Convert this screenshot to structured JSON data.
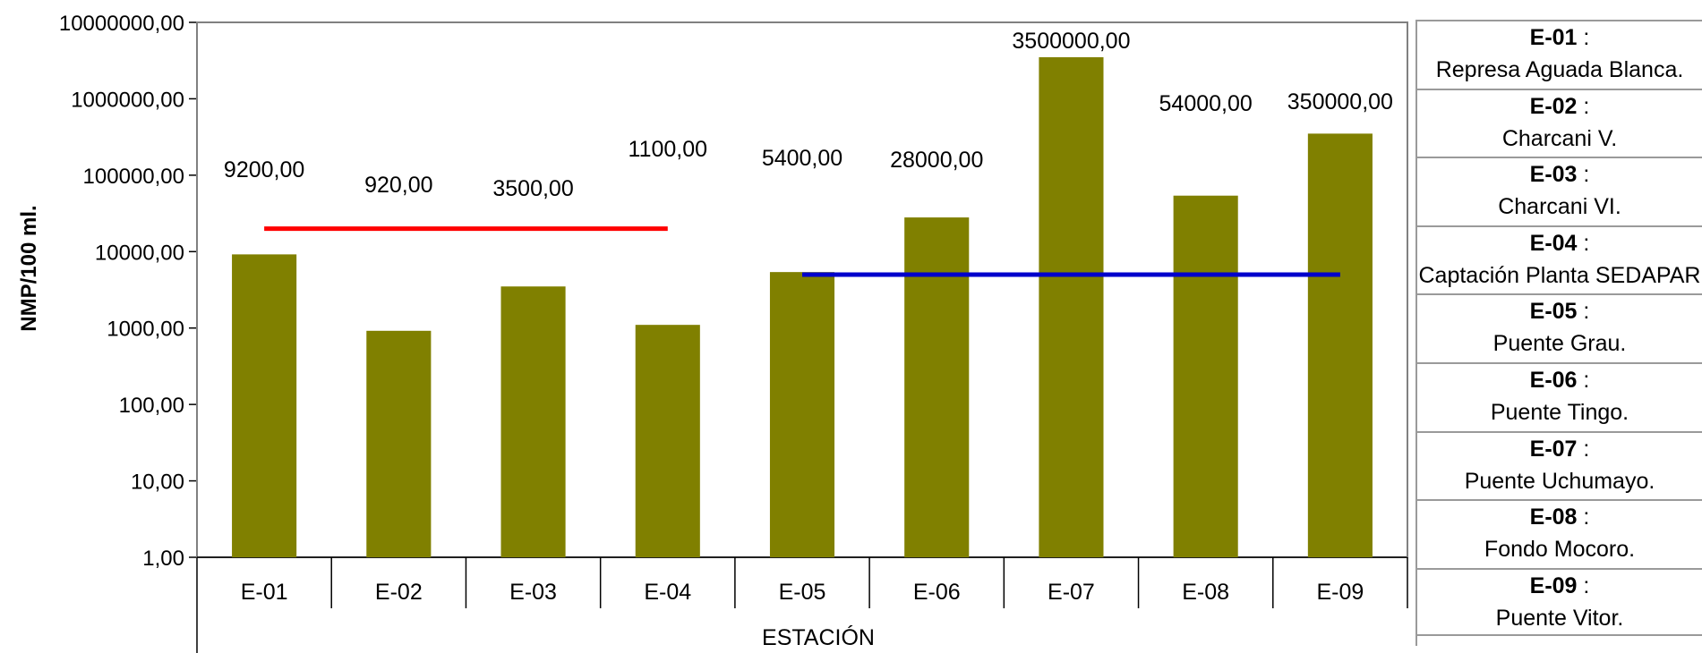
{
  "chart_data": {
    "type": "bar",
    "categories": [
      "E-01",
      "E-02",
      "E-03",
      "E-04",
      "E-05",
      "E-06",
      "E-07",
      "E-08",
      "E-09"
    ],
    "values": [
      9200,
      920,
      3500,
      1100,
      5400,
      28000,
      3500000,
      54000,
      350000
    ],
    "data_labels": [
      "9200,00",
      "920,00",
      "3500,00",
      "1100,00",
      "5400,00",
      "28000,00",
      "3500000,00",
      "54000,00",
      "350000,00"
    ],
    "ylabel": "NMP/100 ml.",
    "xlabel": "ESTACIÓN",
    "yscale": "log",
    "ylim": [
      1,
      10000000
    ],
    "yticks": [
      1,
      10,
      100,
      1000,
      10000,
      100000,
      1000000,
      10000000
    ],
    "ytick_labels": [
      "1,00",
      "10,00",
      "100,00",
      "1000,00",
      "10000,00",
      "100000,00",
      "1000000,00",
      "10000000,00"
    ],
    "bar_color": "#808000",
    "grid": false,
    "reference_lines": [
      {
        "value": 20000,
        "from": "E-01",
        "to": "E-04",
        "color": "#ff0000"
      },
      {
        "value": 5000,
        "from": "E-05",
        "to": "E-09",
        "color": "#0000cc"
      }
    ],
    "legend_position": "right"
  },
  "legend": {
    "items": [
      {
        "code": "E-01",
        "name": "Represa Aguada Blanca."
      },
      {
        "code": "E-02",
        "name": "Charcani V."
      },
      {
        "code": "E-03",
        "name": "Charcani VI."
      },
      {
        "code": "E-04",
        "name": "Captación Planta SEDAPAR"
      },
      {
        "code": "E-05",
        "name": "Puente Grau."
      },
      {
        "code": "E-06",
        "name": "Puente Tingo."
      },
      {
        "code": "E-07",
        "name": "Puente Uchumayo."
      },
      {
        "code": "E-08",
        "name": "Fondo Mocoro."
      },
      {
        "code": "E-09",
        "name": "Puente Vitor."
      }
    ],
    "separator": ":"
  }
}
